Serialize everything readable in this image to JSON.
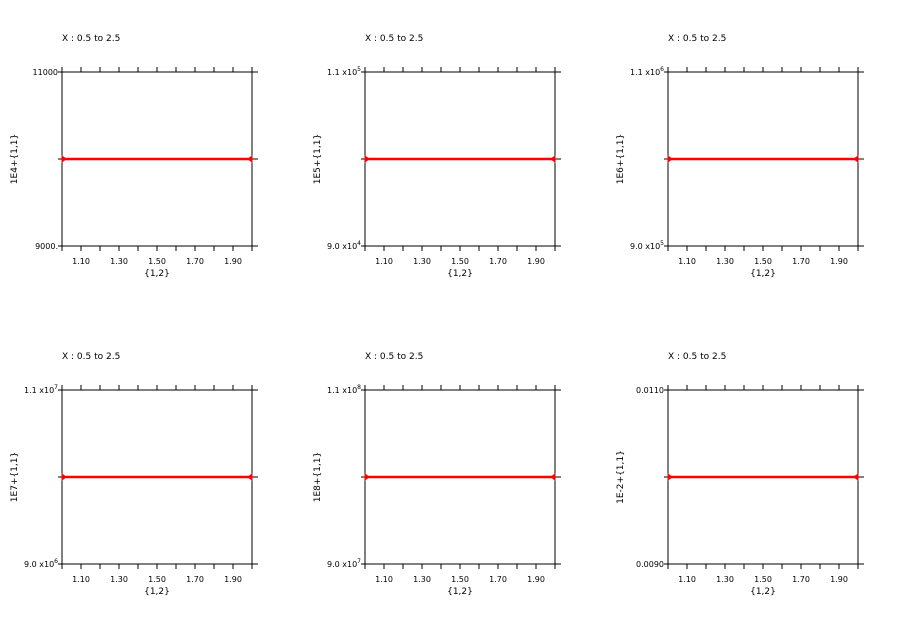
{
  "chart_data": [
    {
      "type": "line",
      "title": "X : 0.5 to 2.5",
      "xlabel": "{1,2}",
      "ylabel": "1E4+{1,1}",
      "xlim": [
        1.0,
        2.0
      ],
      "ylim": [
        9000,
        11000
      ],
      "y_tick_labels": [
        "11000",
        "9000."
      ],
      "x_tick_labels": [
        "1.10",
        "1.30",
        "1.50",
        "1.70",
        "1.90"
      ],
      "x": [
        1.0,
        2.0
      ],
      "series": [
        {
          "values": [
            10000,
            10000
          ],
          "color": "#ff0000"
        }
      ]
    },
    {
      "type": "line",
      "title": "X : 0.5 to 2.5",
      "xlabel": "{1,2}",
      "ylabel": "1E5+{1,1}",
      "xlim": [
        1.0,
        2.0
      ],
      "ylim": [
        90000,
        110000
      ],
      "y_tick_labels": [
        {
          "mantissa": "1.1 x10",
          "exp": "5"
        },
        {
          "mantissa": "9.0 x10",
          "exp": "4"
        }
      ],
      "x_tick_labels": [
        "1.10",
        "1.30",
        "1.50",
        "1.70",
        "1.90"
      ],
      "x": [
        1.0,
        2.0
      ],
      "series": [
        {
          "values": [
            100000,
            100000
          ],
          "color": "#ff0000"
        }
      ]
    },
    {
      "type": "line",
      "title": "X : 0.5 to 2.5",
      "xlabel": "{1,2}",
      "ylabel": "1E6+{1,1}",
      "xlim": [
        1.0,
        2.0
      ],
      "ylim": [
        900000,
        1100000
      ],
      "y_tick_labels": [
        {
          "mantissa": "1.1 x10",
          "exp": "6"
        },
        {
          "mantissa": "9.0 x10",
          "exp": "5"
        }
      ],
      "x_tick_labels": [
        "1.10",
        "1.30",
        "1.50",
        "1.70",
        "1.90"
      ],
      "x": [
        1.0,
        2.0
      ],
      "series": [
        {
          "values": [
            1000000,
            1000000
          ],
          "color": "#ff0000"
        }
      ]
    },
    {
      "type": "line",
      "title": "X : 0.5 to 2.5",
      "xlabel": "{1,2}",
      "ylabel": "1E7+{1,1}",
      "xlim": [
        1.0,
        2.0
      ],
      "ylim": [
        9000000,
        11000000
      ],
      "y_tick_labels": [
        {
          "mantissa": "1.1 x10",
          "exp": "7"
        },
        {
          "mantissa": "9.0 x10",
          "exp": "6"
        }
      ],
      "x_tick_labels": [
        "1.10",
        "1.30",
        "1.50",
        "1.70",
        "1.90"
      ],
      "x": [
        1.0,
        2.0
      ],
      "series": [
        {
          "values": [
            10000000,
            10000000
          ],
          "color": "#ff0000"
        }
      ]
    },
    {
      "type": "line",
      "title": "X : 0.5 to 2.5",
      "xlabel": "{1,2}",
      "ylabel": "1E8+{1,1}",
      "xlim": [
        1.0,
        2.0
      ],
      "ylim": [
        90000000,
        110000000
      ],
      "y_tick_labels": [
        {
          "mantissa": "1.1 x10",
          "exp": "8"
        },
        {
          "mantissa": "9.0 x10",
          "exp": "7"
        }
      ],
      "x_tick_labels": [
        "1.10",
        "1.30",
        "1.50",
        "1.70",
        "1.90"
      ],
      "x": [
        1.0,
        2.0
      ],
      "series": [
        {
          "values": [
            100000000,
            100000000
          ],
          "color": "#ff0000"
        }
      ]
    },
    {
      "type": "line",
      "title": "X : 0.5 to 2.5",
      "xlabel": "{1,2}",
      "ylabel": "1E-2+{1,1}",
      "xlim": [
        1.0,
        2.0
      ],
      "ylim": [
        0.009,
        0.011
      ],
      "y_tick_labels": [
        "0.0110",
        "0.0090"
      ],
      "x_tick_labels": [
        "1.10",
        "1.30",
        "1.50",
        "1.70",
        "1.90"
      ],
      "x": [
        1.0,
        2.0
      ],
      "series": [
        {
          "values": [
            0.01,
            0.01
          ],
          "color": "#ff0000"
        }
      ]
    }
  ]
}
